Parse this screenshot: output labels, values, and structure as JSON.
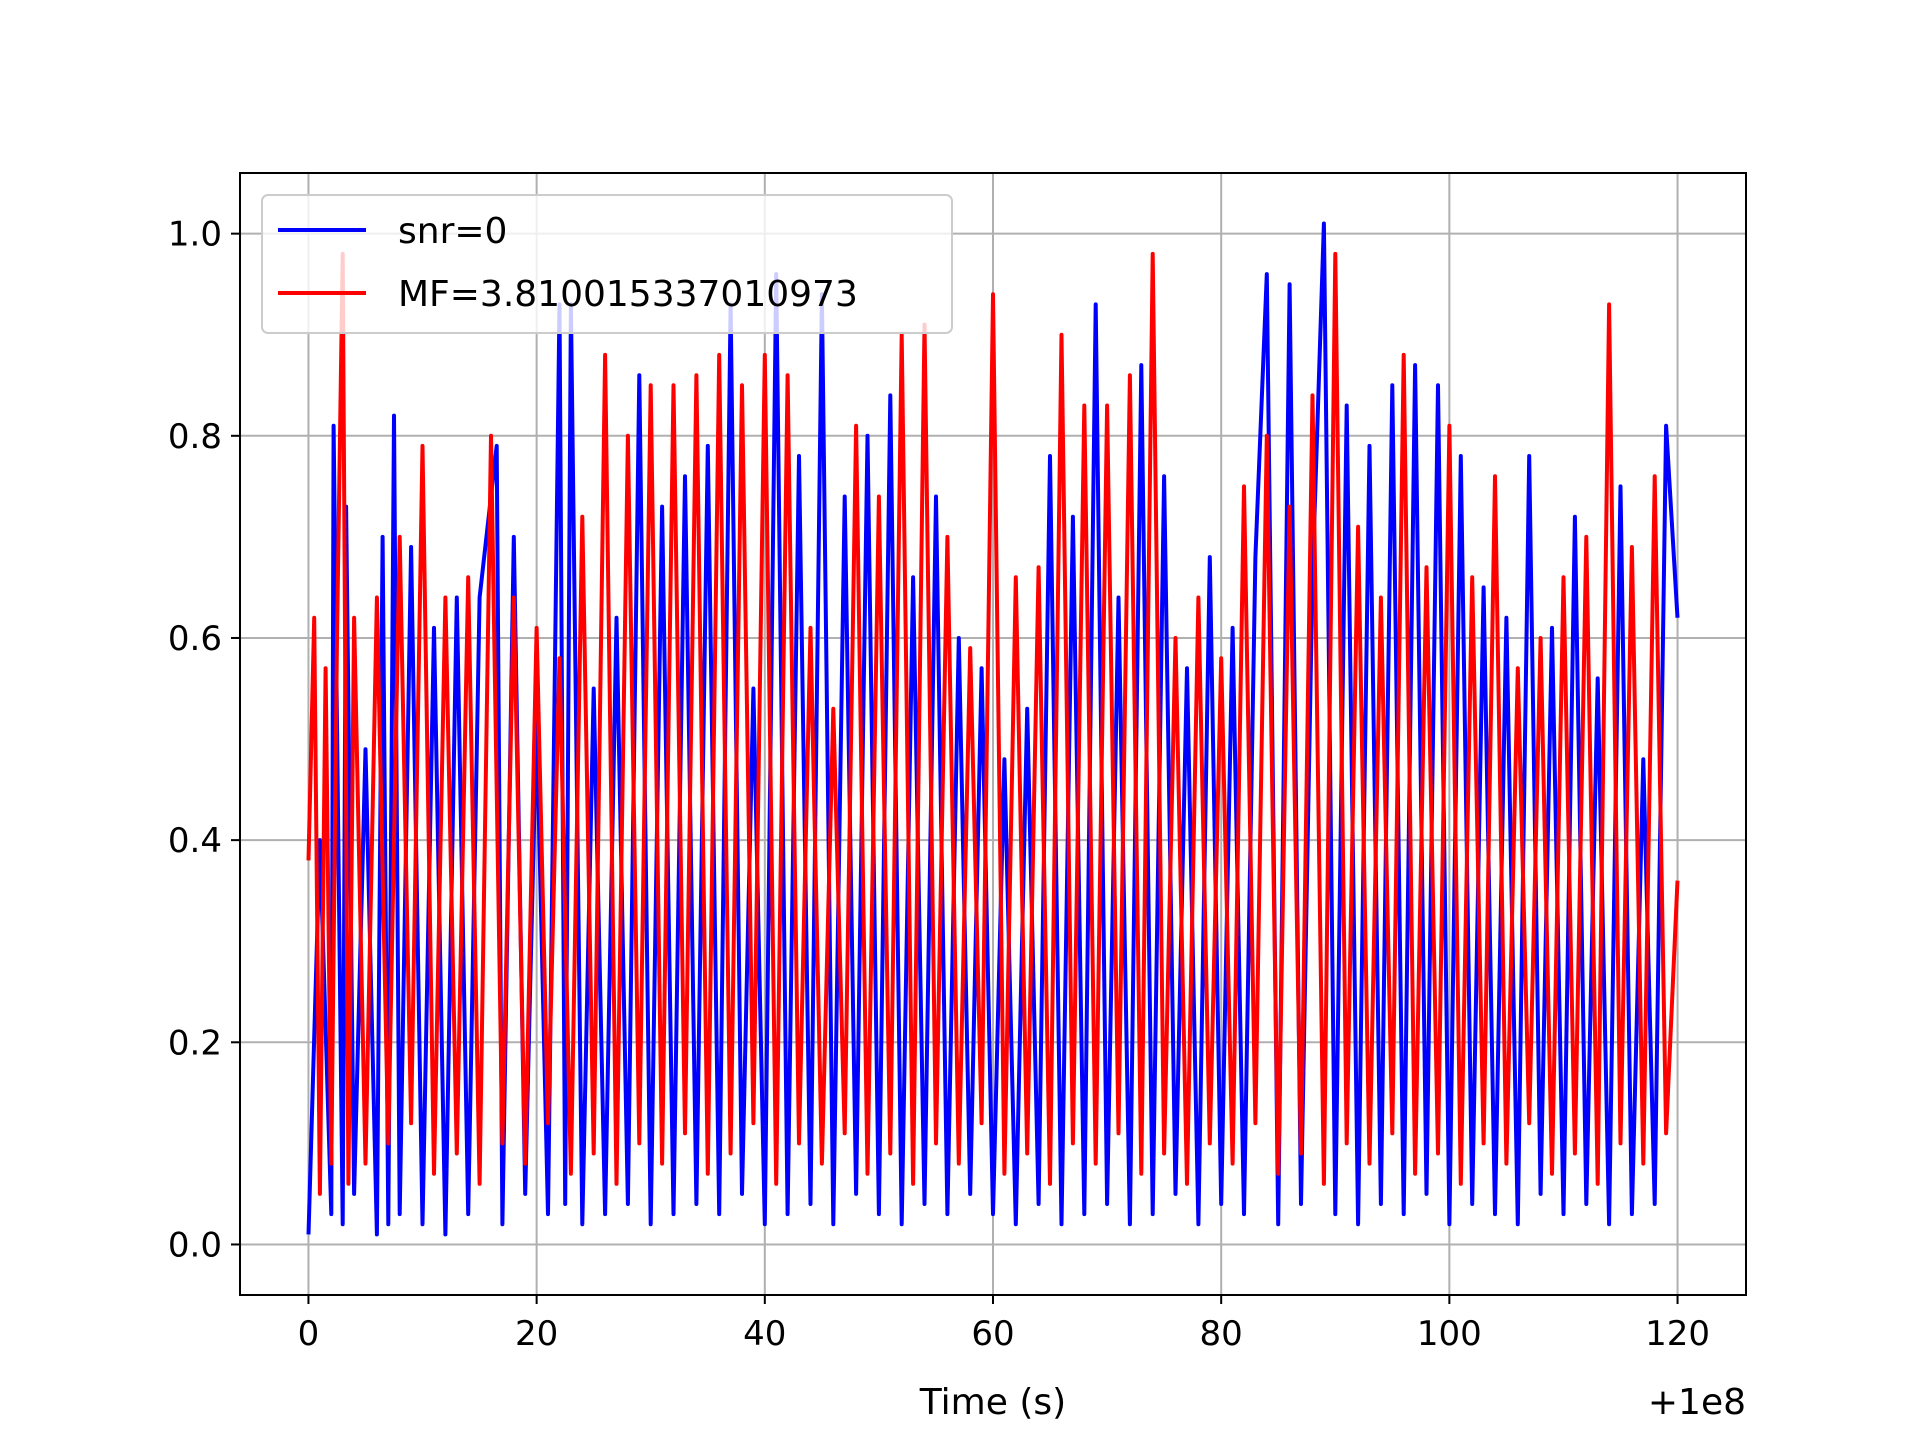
{
  "chart_data": {
    "type": "line",
    "title": "",
    "xlabel": "Time (s)",
    "ylabel": "",
    "x_offset_label": "+1e8",
    "xlim": [
      -6,
      126
    ],
    "ylim": [
      -0.05,
      1.06
    ],
    "x_ticks": [
      0,
      20,
      40,
      60,
      80,
      100,
      120
    ],
    "x_tick_labels": [
      "0",
      "20",
      "40",
      "60",
      "80",
      "100",
      "120"
    ],
    "y_ticks": [
      0.0,
      0.2,
      0.4,
      0.6,
      0.8,
      1.0
    ],
    "y_tick_labels": [
      "0.0",
      "0.2",
      "0.4",
      "0.6",
      "0.8",
      "1.0"
    ],
    "grid": true,
    "legend_position": "top-left",
    "series": [
      {
        "name": "snr=0",
        "color": "#0000ff",
        "x": [
          0,
          1,
          2,
          2.2,
          3,
          3.3,
          4,
          5,
          6,
          6.5,
          7,
          7.5,
          8,
          9,
          10,
          11,
          12,
          13,
          14,
          15,
          16.5,
          17,
          18,
          19,
          20,
          21,
          22,
          22.5,
          23,
          24,
          25,
          26,
          27,
          28,
          29,
          30,
          31,
          32,
          33,
          34,
          35,
          36,
          37,
          38,
          39,
          40,
          41,
          42,
          43,
          44,
          45,
          46,
          47,
          48,
          49,
          50,
          51,
          52,
          53,
          54,
          55,
          56,
          57,
          58,
          59,
          60,
          61,
          62,
          63,
          64,
          65,
          66,
          67,
          68,
          69,
          70,
          71,
          72,
          73,
          74,
          75,
          76,
          77,
          78,
          79,
          80,
          81,
          82,
          83,
          84,
          85,
          86,
          87,
          88,
          89,
          90,
          91,
          92,
          93,
          94,
          95,
          96,
          97,
          98,
          99,
          100,
          101,
          102,
          103,
          104,
          105,
          106,
          107,
          108,
          109,
          110,
          111,
          112,
          113,
          114,
          115,
          116,
          117,
          118,
          119,
          120
        ],
        "y": [
          0.01,
          0.4,
          0.03,
          0.81,
          0.02,
          0.73,
          0.05,
          0.49,
          0.01,
          0.7,
          0.02,
          0.82,
          0.03,
          0.69,
          0.02,
          0.61,
          0.01,
          0.64,
          0.03,
          0.64,
          0.79,
          0.02,
          0.7,
          0.05,
          0.52,
          0.03,
          0.93,
          0.04,
          0.93,
          0.02,
          0.55,
          0.03,
          0.62,
          0.04,
          0.86,
          0.02,
          0.73,
          0.03,
          0.76,
          0.04,
          0.79,
          0.03,
          0.93,
          0.05,
          0.55,
          0.02,
          0.96,
          0.03,
          0.78,
          0.04,
          0.94,
          0.02,
          0.74,
          0.05,
          0.8,
          0.03,
          0.84,
          0.02,
          0.66,
          0.04,
          0.74,
          0.03,
          0.6,
          0.05,
          0.57,
          0.03,
          0.48,
          0.02,
          0.53,
          0.04,
          0.78,
          0.02,
          0.72,
          0.03,
          0.93,
          0.04,
          0.64,
          0.02,
          0.87,
          0.03,
          0.76,
          0.05,
          0.57,
          0.02,
          0.68,
          0.04,
          0.61,
          0.03,
          0.68,
          0.96,
          0.02,
          0.95,
          0.04,
          0.66,
          1.01,
          0.03,
          0.83,
          0.02,
          0.79,
          0.04,
          0.85,
          0.03,
          0.87,
          0.05,
          0.85,
          0.02,
          0.78,
          0.04,
          0.65,
          0.03,
          0.62,
          0.02,
          0.78,
          0.05,
          0.61,
          0.03,
          0.72,
          0.04,
          0.56,
          0.02,
          0.75,
          0.03,
          0.48,
          0.04,
          0.81,
          0.62
        ]
      },
      {
        "name": "MF=3.810015337010973",
        "color": "#ff0000",
        "x": [
          0,
          0.5,
          1,
          1.5,
          2,
          2.5,
          3,
          3.5,
          4,
          5,
          6,
          7,
          8,
          9,
          10,
          11,
          12,
          13,
          14,
          15,
          16,
          17,
          18,
          19,
          20,
          21,
          22,
          23,
          24,
          25,
          26,
          27,
          28,
          29,
          30,
          31,
          32,
          33,
          34,
          35,
          36,
          37,
          38,
          39,
          40,
          41,
          42,
          43,
          44,
          45,
          46,
          47,
          48,
          49,
          50,
          51,
          52,
          53,
          54,
          55,
          56,
          57,
          58,
          59,
          60,
          61,
          62,
          63,
          64,
          65,
          66,
          67,
          68,
          69,
          70,
          71,
          72,
          73,
          74,
          75,
          76,
          77,
          78,
          79,
          80,
          81,
          82,
          83,
          84,
          85,
          86,
          87,
          88,
          89,
          90,
          91,
          92,
          93,
          94,
          95,
          96,
          97,
          98,
          99,
          100,
          101,
          102,
          103,
          104,
          105,
          106,
          107,
          108,
          109,
          110,
          111,
          112,
          113,
          114,
          115,
          116,
          117,
          118,
          119,
          120
        ],
        "y": [
          0.38,
          0.62,
          0.05,
          0.57,
          0.08,
          0.6,
          0.98,
          0.06,
          0.62,
          0.08,
          0.64,
          0.1,
          0.7,
          0.12,
          0.79,
          0.07,
          0.64,
          0.09,
          0.66,
          0.06,
          0.8,
          0.1,
          0.64,
          0.08,
          0.61,
          0.12,
          0.58,
          0.07,
          0.72,
          0.09,
          0.88,
          0.06,
          0.8,
          0.1,
          0.85,
          0.08,
          0.85,
          0.11,
          0.86,
          0.07,
          0.88,
          0.09,
          0.85,
          0.12,
          0.88,
          0.06,
          0.86,
          0.1,
          0.61,
          0.08,
          0.53,
          0.11,
          0.81,
          0.07,
          0.74,
          0.09,
          0.9,
          0.06,
          0.91,
          0.1,
          0.7,
          0.08,
          0.59,
          0.12,
          0.94,
          0.07,
          0.66,
          0.09,
          0.67,
          0.06,
          0.9,
          0.1,
          0.83,
          0.08,
          0.83,
          0.11,
          0.86,
          0.07,
          0.98,
          0.09,
          0.6,
          0.06,
          0.64,
          0.1,
          0.58,
          0.08,
          0.75,
          0.12,
          0.8,
          0.07,
          0.73,
          0.09,
          0.84,
          0.06,
          0.98,
          0.1,
          0.71,
          0.08,
          0.64,
          0.11,
          0.88,
          0.07,
          0.67,
          0.09,
          0.81,
          0.06,
          0.66,
          0.1,
          0.76,
          0.08,
          0.57,
          0.12,
          0.6,
          0.07,
          0.66,
          0.09,
          0.7,
          0.06,
          0.93,
          0.1,
          0.69,
          0.08,
          0.76,
          0.11,
          0.36
        ]
      }
    ]
  }
}
